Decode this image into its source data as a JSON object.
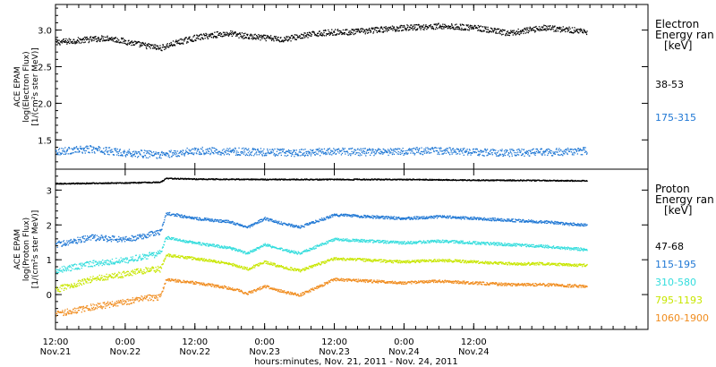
{
  "chart_data": [
    {
      "type": "scatter",
      "panel": "top",
      "ylabel": [
        "ACE EPAM",
        "log(Electron Flux)",
        "[1/(cm²s ster MeV)]"
      ],
      "ylim": [
        1.1,
        3.35
      ],
      "yticks": [
        1.5,
        2.0,
        2.5,
        3.0
      ],
      "ytick_labels": [
        "1.5",
        "2.0",
        "2.5",
        "3.0"
      ],
      "legend_title": [
        "Electron",
        "Energy ran",
        "[keV]"
      ],
      "legend_placement": "right",
      "series": [
        {
          "name": "38-53",
          "color": "#000000",
          "x": [
            0,
            3,
            6,
            9,
            12,
            15,
            18,
            21,
            24,
            27,
            30,
            33,
            36,
            39,
            42,
            45,
            48,
            51,
            54,
            57,
            60,
            63,
            66,
            69,
            72,
            75,
            78,
            81,
            84,
            87,
            90,
            91.5
          ],
          "y": [
            2.84,
            2.86,
            2.88,
            2.9,
            2.85,
            2.8,
            2.76,
            2.84,
            2.9,
            2.94,
            2.96,
            2.92,
            2.9,
            2.88,
            2.92,
            2.96,
            2.98,
            2.98,
            3.0,
            3.02,
            3.04,
            3.05,
            3.06,
            3.05,
            3.04,
            3.0,
            2.96,
            3.0,
            3.04,
            3.02,
            3.0,
            2.98
          ]
        },
        {
          "name": "175-315",
          "color": "#1f77d4",
          "x": [
            0,
            6,
            12,
            18,
            24,
            30,
            36,
            42,
            48,
            54,
            60,
            66,
            72,
            78,
            84,
            90,
            91.5
          ],
          "y": [
            1.35,
            1.38,
            1.33,
            1.3,
            1.36,
            1.35,
            1.34,
            1.33,
            1.35,
            1.34,
            1.35,
            1.36,
            1.34,
            1.33,
            1.34,
            1.35,
            1.36
          ]
        }
      ]
    },
    {
      "type": "scatter",
      "panel": "bottom",
      "ylabel": [
        "ACE EPAM",
        "log(Proton Flux)",
        "[1/(cm²s ster MeV)]"
      ],
      "ylim": [
        -1.0,
        3.6
      ],
      "yticks": [
        0,
        1,
        2,
        3
      ],
      "ytick_labels": [
        "0",
        "1",
        "2",
        "3"
      ],
      "legend_title": [
        "Proton",
        "Energy ran",
        "[keV]"
      ],
      "legend_placement": "right",
      "series": [
        {
          "name": "47-68",
          "color": "#000000",
          "x": [
            0,
            12,
            18,
            19,
            24,
            36,
            48,
            60,
            72,
            84,
            91.5
          ],
          "y": [
            3.2,
            3.22,
            3.24,
            3.35,
            3.33,
            3.32,
            3.32,
            3.32,
            3.3,
            3.29,
            3.28
          ]
        },
        {
          "name": "115-195",
          "color": "#1f77d4",
          "x": [
            0,
            6,
            12,
            15,
            18,
            19,
            24,
            30,
            33,
            36,
            39,
            42,
            48,
            54,
            60,
            66,
            72,
            78,
            84,
            91.5
          ],
          "y": [
            1.45,
            1.65,
            1.6,
            1.7,
            1.8,
            2.35,
            2.2,
            2.1,
            1.95,
            2.2,
            2.05,
            1.95,
            2.3,
            2.25,
            2.2,
            2.25,
            2.2,
            2.15,
            2.1,
            2.0
          ]
        },
        {
          "name": "310-580",
          "color": "#33dddd",
          "x": [
            0,
            6,
            12,
            15,
            18,
            19,
            24,
            30,
            33,
            36,
            39,
            42,
            48,
            54,
            60,
            66,
            72,
            78,
            84,
            91.5
          ],
          "y": [
            0.7,
            0.9,
            1.0,
            1.1,
            1.2,
            1.65,
            1.5,
            1.35,
            1.2,
            1.45,
            1.3,
            1.2,
            1.6,
            1.55,
            1.5,
            1.55,
            1.5,
            1.45,
            1.4,
            1.3
          ]
        },
        {
          "name": "795-1193",
          "color": "#c8e600",
          "x": [
            0,
            6,
            12,
            15,
            18,
            19,
            24,
            30,
            33,
            36,
            39,
            42,
            48,
            54,
            60,
            66,
            72,
            78,
            84,
            91.5
          ],
          "y": [
            0.15,
            0.45,
            0.6,
            0.7,
            0.75,
            1.15,
            1.05,
            0.9,
            0.75,
            0.95,
            0.8,
            0.7,
            1.05,
            1.0,
            0.95,
            1.0,
            0.95,
            0.9,
            0.9,
            0.85
          ]
        },
        {
          "name": "1060-1900",
          "color": "#f08c1e",
          "x": [
            0,
            6,
            12,
            15,
            18,
            19,
            24,
            30,
            33,
            36,
            39,
            42,
            48,
            54,
            60,
            66,
            72,
            78,
            84,
            91.5
          ],
          "y": [
            -0.55,
            -0.35,
            -0.2,
            -0.1,
            -0.05,
            0.45,
            0.35,
            0.2,
            0.05,
            0.25,
            0.1,
            0.0,
            0.45,
            0.4,
            0.35,
            0.4,
            0.35,
            0.3,
            0.3,
            0.25
          ]
        }
      ]
    }
  ],
  "x_axis": {
    "range_hours": [
      0,
      102
    ],
    "ticks": [
      {
        "h": 0,
        "top": "12:00",
        "bottom": "Nov.21"
      },
      {
        "h": 12,
        "top": "0:00",
        "bottom": "Nov.22"
      },
      {
        "h": 24,
        "top": "12:00",
        "bottom": "Nov.22"
      },
      {
        "h": 36,
        "top": "0:00",
        "bottom": "Nov.23"
      },
      {
        "h": 48,
        "top": "12:00",
        "bottom": "Nov.23"
      },
      {
        "h": 60,
        "top": "0:00",
        "bottom": "Nov.24"
      },
      {
        "h": 72,
        "top": "12:00",
        "bottom": "Nov.24"
      }
    ],
    "xlabel": "hours:minutes, Nov. 21, 2011 - Nov. 24, 2011"
  }
}
